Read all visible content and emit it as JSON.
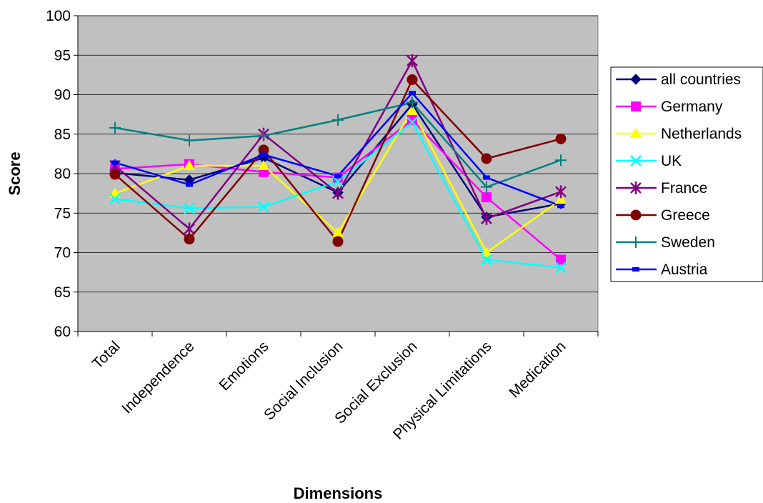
{
  "chart_data": {
    "type": "line",
    "xlabel": "Dimensions",
    "ylabel": "Score",
    "ylim": [
      60,
      100
    ],
    "yticks": [
      60,
      65,
      70,
      75,
      80,
      85,
      90,
      95,
      100
    ],
    "grid": "horizontal",
    "plot_background": "#c0c0c0",
    "legend_position": "right",
    "categories": [
      "Total",
      "Independence",
      "Emotions",
      "Social Inclusion",
      "Social Exclusion",
      "Physical Limitations",
      "Medication"
    ],
    "series": [
      {
        "name": "all countries",
        "color": "#000080",
        "marker": "diamond",
        "values": [
          80.1,
          79.2,
          82.0,
          77.6,
          88.8,
          74.5,
          76.2
        ]
      },
      {
        "name": "Germany",
        "color": "#ff00ff",
        "marker": "square",
        "values": [
          80.6,
          81.2,
          80.2,
          79.5,
          86.8,
          77.0,
          69.1
        ]
      },
      {
        "name": "Netherlands",
        "color": "#ffff00",
        "marker": "triangle",
        "values": [
          77.5,
          81.0,
          81.0,
          72.5,
          88.0,
          70.0,
          76.7
        ]
      },
      {
        "name": "UK",
        "color": "#00ffff",
        "marker": "x",
        "values": [
          76.8,
          75.6,
          75.8,
          79.0,
          86.5,
          69.1,
          68.1
        ]
      },
      {
        "name": "France",
        "color": "#800080",
        "marker": "star",
        "values": [
          81.0,
          73.0,
          85.0,
          77.5,
          94.3,
          74.3,
          77.7
        ]
      },
      {
        "name": "Greece",
        "color": "#800000",
        "marker": "circle",
        "values": [
          79.9,
          71.7,
          83.0,
          71.4,
          91.9,
          81.9,
          84.4
        ]
      },
      {
        "name": "Sweden",
        "color": "#008080",
        "marker": "plus",
        "values": [
          85.8,
          84.2,
          84.8,
          86.8,
          89.0,
          78.3,
          81.7
        ]
      },
      {
        "name": "Austria",
        "color": "#0000ff",
        "marker": "dash",
        "values": [
          81.4,
          78.6,
          82.4,
          79.7,
          90.2,
          79.5,
          75.9
        ]
      }
    ]
  }
}
